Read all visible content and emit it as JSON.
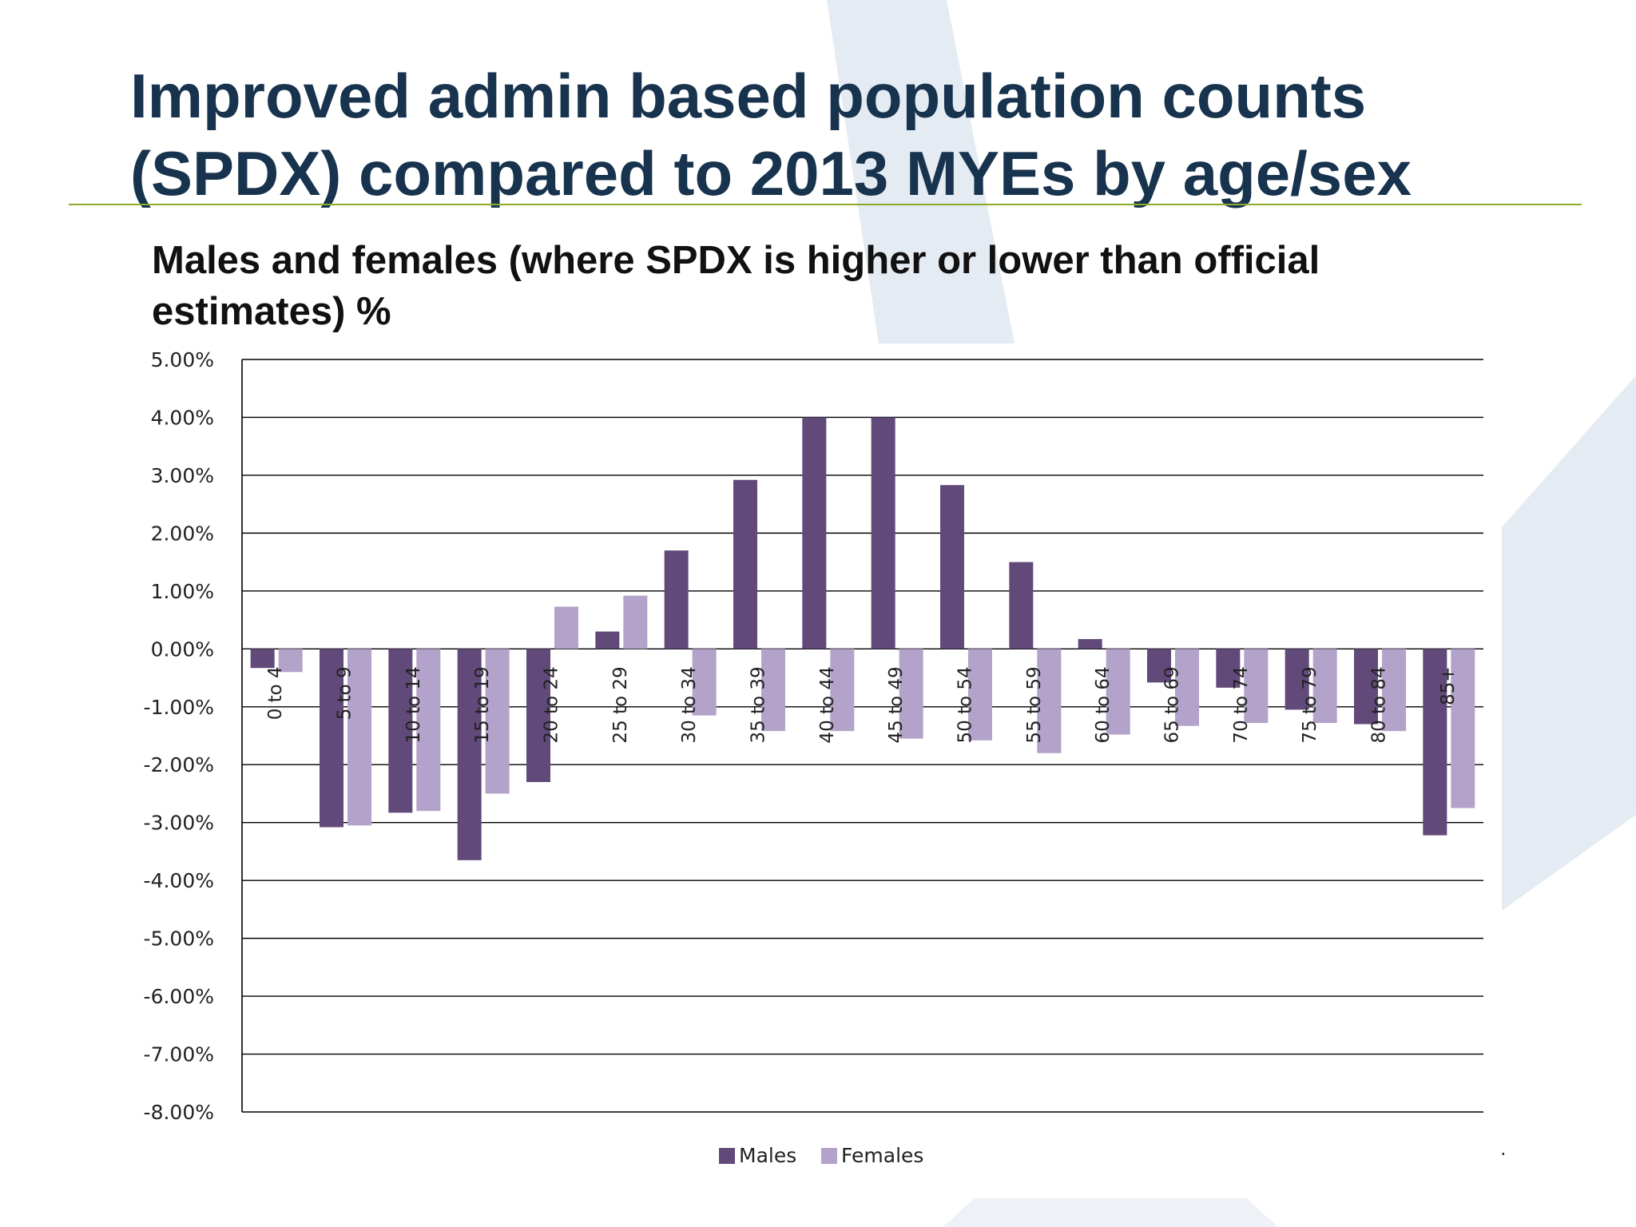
{
  "slide": {
    "title": "Improved admin based population counts (SPDX) compared to 2013 MYEs by age/sex",
    "subtitle": "Males and females (where SPDX is higher or lower than official estimates) %",
    "rule_color": "#8dac2e",
    "title_color": "#17334e",
    "stray_mark": "."
  },
  "chart_data": {
    "type": "bar",
    "title": "Males and females (where SPDX is higher or lower than official estimates) %",
    "categories": [
      "0 to 4",
      "5 to 9",
      "10 to 14",
      "15 to 19",
      "20 to 24",
      "25 to 29",
      "30 to 34",
      "35 to 39",
      "40 to 44",
      "45 to 49",
      "50 to 54",
      "55 to 59",
      "60 to 64",
      "65 to 69",
      "70 to 74",
      "75 to 79",
      "80 to 84",
      "85+"
    ],
    "series": [
      {
        "name": "Males",
        "color": "#614a7a",
        "values": [
          -0.33,
          -3.08,
          -2.83,
          -3.65,
          -2.3,
          0.3,
          1.7,
          2.92,
          4.0,
          4.0,
          2.83,
          1.5,
          0.17,
          -0.58,
          -0.67,
          -1.05,
          -1.3,
          -3.22
        ]
      },
      {
        "name": "Females",
        "color": "#b3a2c9",
        "values": [
          -0.4,
          -3.05,
          -2.8,
          -2.5,
          0.73,
          0.92,
          -1.15,
          -1.42,
          -1.42,
          -1.55,
          -1.58,
          -1.8,
          -1.48,
          -1.33,
          -1.28,
          -1.28,
          -1.42,
          -2.75
        ]
      }
    ],
    "y_ticks": [
      "5.00%",
      "4.00%",
      "3.00%",
      "2.00%",
      "1.00%",
      "0.00%",
      "-1.00%",
      "-2.00%",
      "-3.00%",
      "-4.00%",
      "-5.00%",
      "-6.00%",
      "-7.00%",
      "-8.00%"
    ],
    "y_tick_values": [
      5,
      4,
      3,
      2,
      1,
      0,
      -1,
      -2,
      -3,
      -4,
      -5,
      -6,
      -7,
      -8
    ],
    "ylim": [
      -8,
      5
    ],
    "y_unit": "%",
    "xlabel": "",
    "ylabel": "",
    "grid": true,
    "legend_position": "bottom",
    "category_label_rotation": "vertical"
  }
}
